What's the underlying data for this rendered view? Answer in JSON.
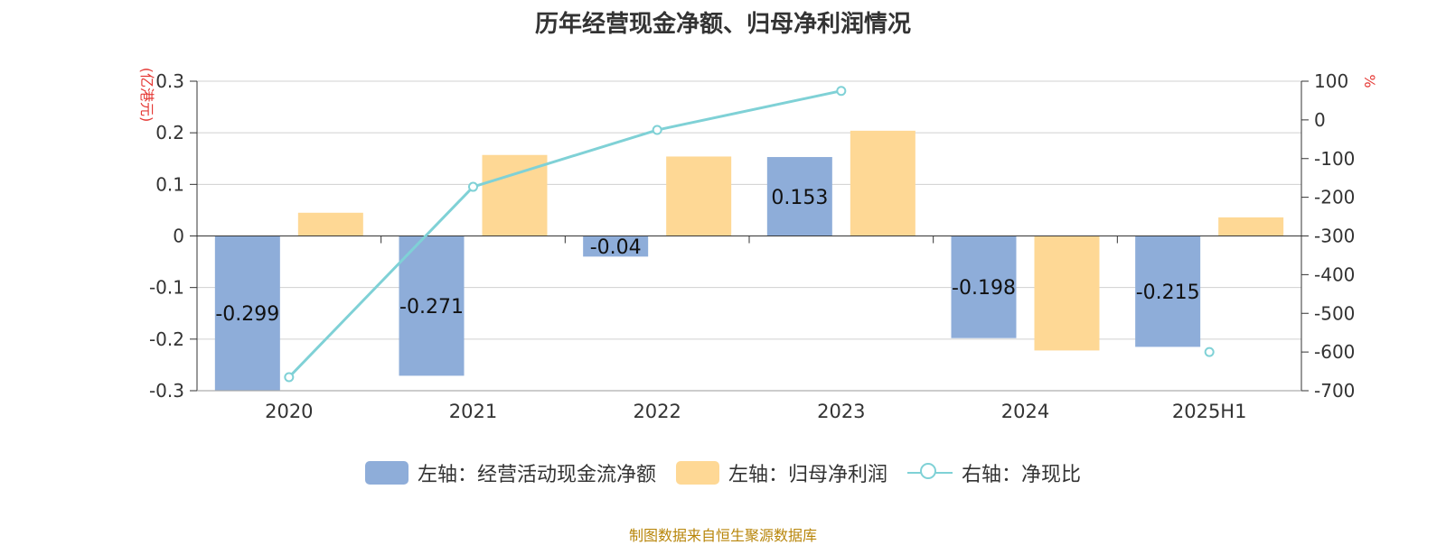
{
  "title": "历年经营现金净额、归母净利润情况",
  "source": "制图数据来自恒生聚源数据库",
  "colors": {
    "cash": "#8eadd9",
    "profit": "#fed895",
    "ratio": "#7fd1d6",
    "unit_label": "#e53935",
    "axis": "#333333",
    "grid": "#d0d0d0"
  },
  "legend": [
    {
      "label": "左轴：经营活动现金流净额",
      "kind": "bar",
      "color_key": "cash"
    },
    {
      "label": "左轴：归母净利润",
      "kind": "bar",
      "color_key": "profit"
    },
    {
      "label": "右轴：净现比",
      "kind": "line",
      "color_key": "ratio"
    }
  ],
  "chart_data": {
    "type": "bar",
    "categories": [
      "2020",
      "2021",
      "2022",
      "2023",
      "2024",
      "2025H1"
    ],
    "left_axis": {
      "unit": "(亿港元)",
      "ylim": [
        -0.3,
        0.3
      ],
      "ticks": [
        0.3,
        0.2,
        0.1,
        0,
        -0.1,
        -0.2,
        -0.3
      ],
      "tick_labels": [
        "0.3",
        "0.2",
        "0.1",
        "0",
        "-0.1",
        "-0.2",
        "-0.3"
      ]
    },
    "right_axis": {
      "unit": "%",
      "ylim": [
        -700,
        100
      ],
      "ticks": [
        100,
        0,
        -100,
        -200,
        -300,
        -400,
        -500,
        -600,
        -700
      ],
      "tick_labels": [
        "100",
        "0",
        "-100",
        "-200",
        "-300",
        "-400",
        "-500",
        "-600",
        "-700"
      ]
    },
    "series": [
      {
        "name": "左轴：经营活动现金流净额",
        "type": "bar",
        "axis": "left",
        "values": [
          -0.299,
          -0.271,
          -0.04,
          0.153,
          -0.198,
          -0.215
        ],
        "labels": [
          "-0.299",
          "-0.271",
          "-0.04",
          "0.153",
          "-0.198",
          "-0.215"
        ]
      },
      {
        "name": "左轴：归母净利润",
        "type": "bar",
        "axis": "left",
        "values": [
          0.045,
          0.157,
          0.154,
          0.204,
          -0.222,
          0.036
        ]
      },
      {
        "name": "右轴：净现比",
        "type": "line",
        "axis": "right",
        "values": [
          -665,
          -173,
          -26,
          75,
          null,
          -600
        ]
      }
    ],
    "grid": true,
    "legend_position": "bottom"
  }
}
